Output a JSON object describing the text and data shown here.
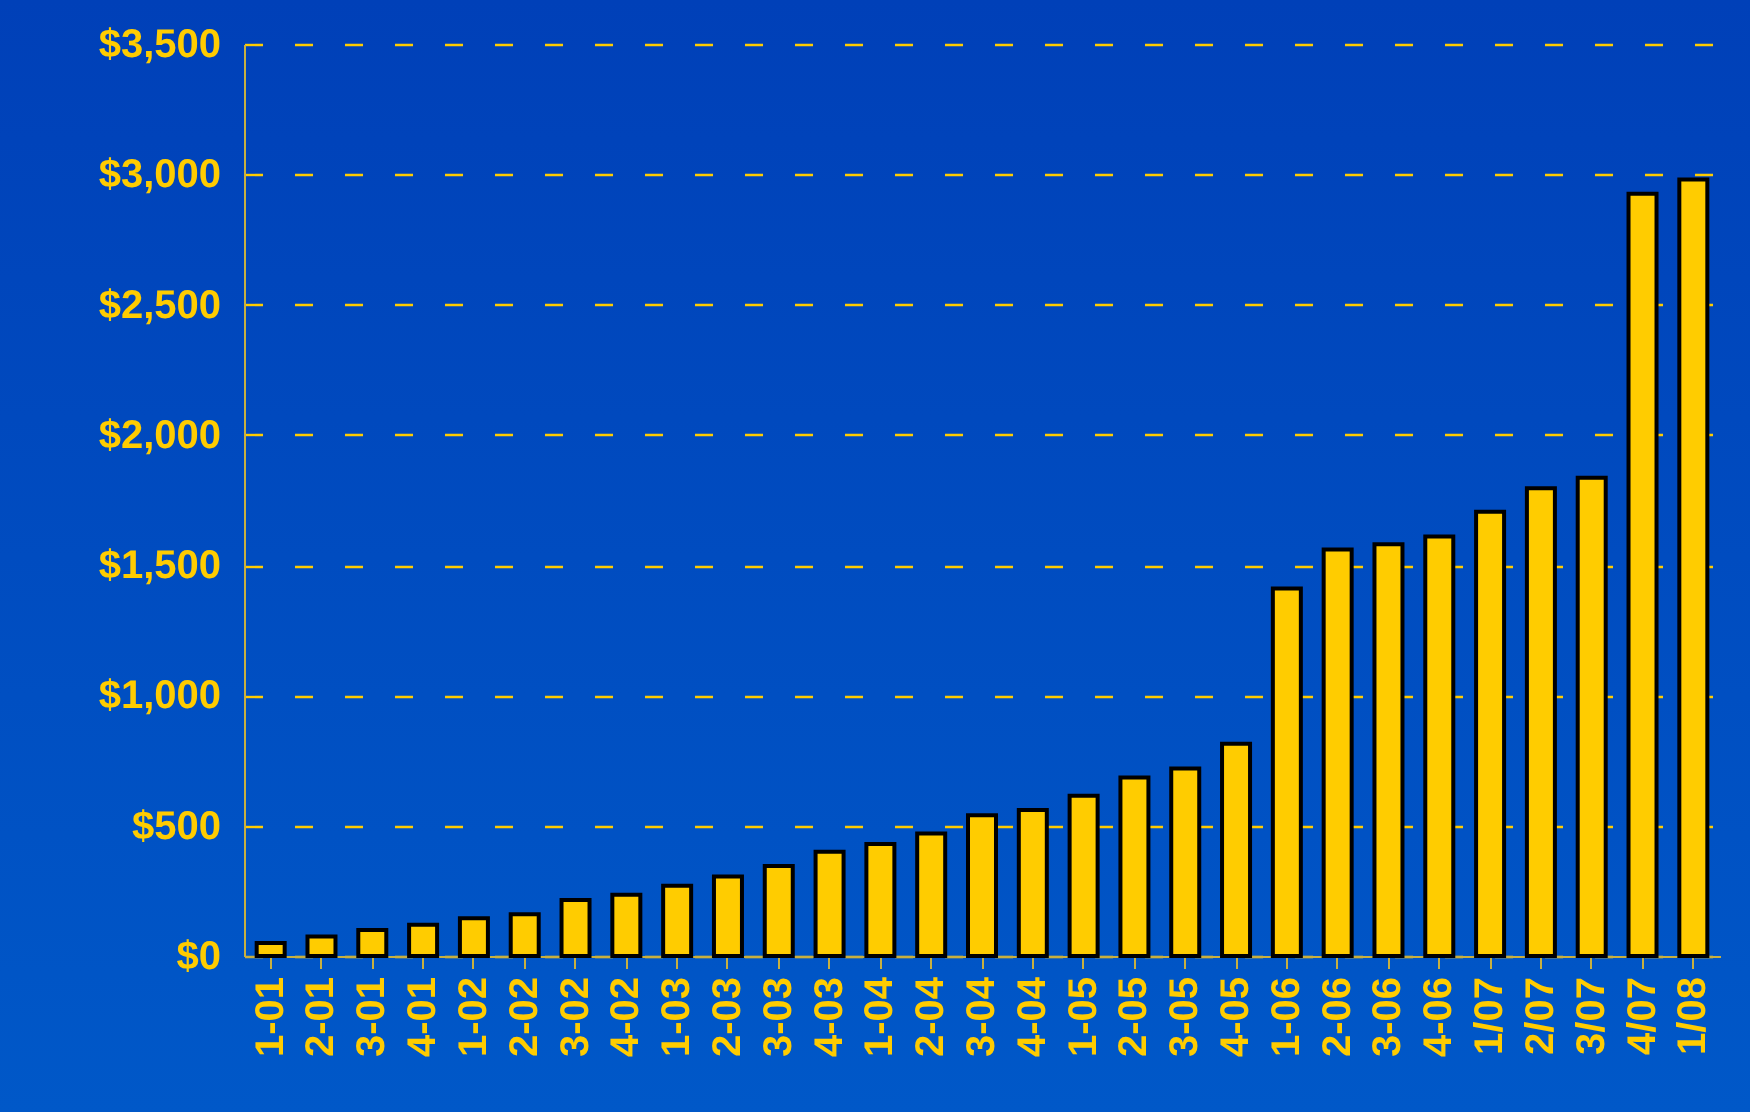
{
  "chart_data": {
    "type": "bar",
    "categories": [
      "1-01",
      "2-01",
      "3-01",
      "4-01",
      "1-02",
      "2-02",
      "3-02",
      "4-02",
      "1-03",
      "2-03",
      "3-03",
      "4-03",
      "1-04",
      "2-04",
      "3-04",
      "4-04",
      "1-05",
      "2-05",
      "3-05",
      "4-05",
      "1-06",
      "2-06",
      "3-06",
      "4-06",
      "1/07",
      "2/07",
      "3/07",
      "4/07",
      "1/08"
    ],
    "values": [
      50,
      75,
      100,
      120,
      145,
      160,
      215,
      235,
      270,
      305,
      345,
      400,
      430,
      470,
      540,
      560,
      615,
      685,
      720,
      815,
      1410,
      1560,
      1580,
      1610,
      1705,
      1795,
      1835,
      2925,
      2980
    ],
    "color": "#ffcc00",
    "ylim": [
      0,
      3500
    ],
    "yticks": [
      {
        "value": 0,
        "label": "$0"
      },
      {
        "value": 500,
        "label": "$500"
      },
      {
        "value": 1000,
        "label": "$1,000"
      },
      {
        "value": 1500,
        "label": "$1,500"
      },
      {
        "value": 2000,
        "label": "$2,000"
      },
      {
        "value": 2500,
        "label": "$2,500"
      },
      {
        "value": 3000,
        "label": "$3,000"
      },
      {
        "value": 3500,
        "label": "$3,500"
      }
    ],
    "grid": "y"
  }
}
